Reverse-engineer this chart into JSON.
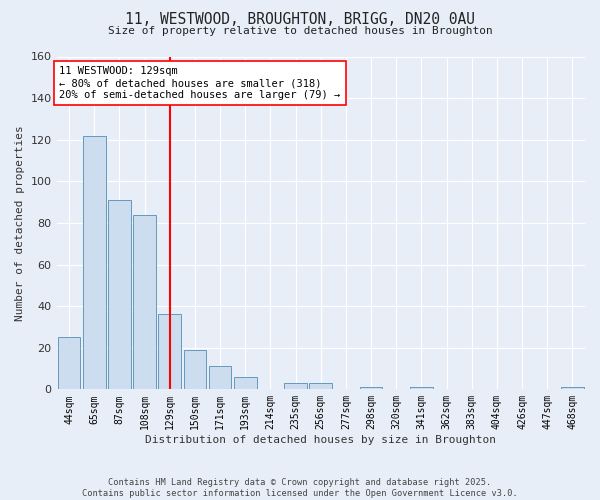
{
  "title_line1": "11, WESTWOOD, BROUGHTON, BRIGG, DN20 0AU",
  "title_line2": "Size of property relative to detached houses in Broughton",
  "xlabel": "Distribution of detached houses by size in Broughton",
  "ylabel": "Number of detached properties",
  "categories": [
    "44sqm",
    "65sqm",
    "87sqm",
    "108sqm",
    "129sqm",
    "150sqm",
    "171sqm",
    "193sqm",
    "214sqm",
    "235sqm",
    "256sqm",
    "277sqm",
    "298sqm",
    "320sqm",
    "341sqm",
    "362sqm",
    "383sqm",
    "404sqm",
    "426sqm",
    "447sqm",
    "468sqm"
  ],
  "values": [
    25,
    122,
    91,
    84,
    36,
    19,
    11,
    6,
    0,
    3,
    3,
    0,
    1,
    0,
    1,
    0,
    0,
    0,
    0,
    0,
    1
  ],
  "bar_color": "#ccddef",
  "bar_edge_color": "#6699bb",
  "red_line_index": 4,
  "annotation_title": "11 WESTWOOD: 129sqm",
  "annotation_line1": "← 80% of detached houses are smaller (318)",
  "annotation_line2": "20% of semi-detached houses are larger (79) →",
  "ylim": [
    0,
    160
  ],
  "yticks": [
    0,
    20,
    40,
    60,
    80,
    100,
    120,
    140,
    160
  ],
  "footer_line1": "Contains HM Land Registry data © Crown copyright and database right 2025.",
  "footer_line2": "Contains public sector information licensed under the Open Government Licence v3.0.",
  "bg_color": "#e8eef8",
  "plot_bg_color": "#e8eef8",
  "grid_color": "#ffffff"
}
